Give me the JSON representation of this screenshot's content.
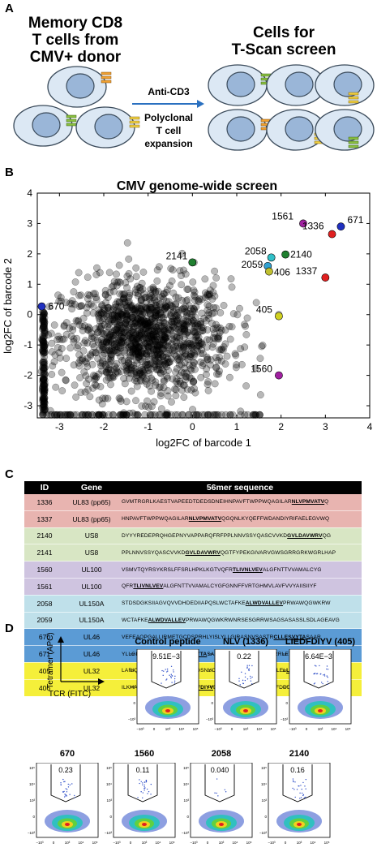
{
  "panel_a": {
    "letter": "A",
    "left_title": [
      "Memory CD8",
      "T cells from",
      "CMV+ donor"
    ],
    "right_title": [
      "Cells for",
      "T-Scan screen"
    ],
    "arrow_top": "Anti-CD3",
    "arrow_bottom": [
      "Polyclonal",
      "T cell",
      "expansion"
    ]
  },
  "panel_b": {
    "letter": "B"
  },
  "chart_data": {
    "type": "scatter",
    "title": "CMV genome-wide screen",
    "xlabel": "log2FC of barcode 1",
    "ylabel": "log2FC of barcode 2",
    "xlim": [
      -3.5,
      4
    ],
    "ylim": [
      -3.4,
      4
    ],
    "xticks": [
      "-3",
      "-2",
      "-1",
      "0",
      "1",
      "2",
      "3",
      "4"
    ],
    "yticks": [
      "4",
      "3",
      "2",
      "1",
      "0",
      "-1",
      "-2",
      "-3"
    ],
    "background_color": "#000000",
    "highlighted": [
      {
        "label": "1561",
        "x": 2.5,
        "y": 3.0,
        "color": "#a020a0"
      },
      {
        "label": "1336",
        "x": 3.15,
        "y": 2.65,
        "color": "#e02020"
      },
      {
        "label": "671",
        "x": 3.35,
        "y": 2.9,
        "color": "#2030c0"
      },
      {
        "label": "2058",
        "x": 1.78,
        "y": 1.88,
        "color": "#30c0c8"
      },
      {
        "label": "2140",
        "x": 2.1,
        "y": 1.98,
        "color": "#208030"
      },
      {
        "label": "2059",
        "x": 1.7,
        "y": 1.6,
        "color": "#30a0d0"
      },
      {
        "label": "406",
        "x": 1.73,
        "y": 1.42,
        "color": "#c0c030"
      },
      {
        "label": "1337",
        "x": 3.0,
        "y": 1.22,
        "color": "#e02020"
      },
      {
        "label": "2141",
        "x": 0.0,
        "y": 1.72,
        "color": "#208030"
      },
      {
        "label": "670",
        "x": -3.4,
        "y": 0.27,
        "color": "#2030c0"
      },
      {
        "label": "405",
        "x": 1.95,
        "y": -0.05,
        "color": "#d0d020"
      },
      {
        "label": "1560",
        "x": 1.95,
        "y": -2.0,
        "color": "#a020a0"
      }
    ]
  },
  "panel_c": {
    "letter": "C",
    "headers": {
      "id": "ID",
      "gene": "Gene",
      "seq": "56mer sequence"
    },
    "rows": [
      {
        "id": "1336",
        "gene": "UL83 (pp65)",
        "bg": "#e8b4b0",
        "pre": "GVMTRGRLKAESTVAPEEDTDEDSDNEIHNPAVFTWPPWQAGILAR",
        "epi": "NLVPMVATV",
        "post": "Q"
      },
      {
        "id": "1337",
        "gene": "UL83 (pp65)",
        "bg": "#e8b4b0",
        "pre": "HNPAVFTWPPWQAGILAR",
        "epi": "NLVPMVATV",
        "post": "QGQNLKYQEFFWDANDIYRIFAELEGVWQ"
      },
      {
        "id": "2140",
        "gene": "US8",
        "bg": "#d8e6c4",
        "pre": "DYYYREDEPRQHGEPNYVAPPARQFRFPPLNNVSSYQASCVVKD",
        "epi": "GVLDAVWRV",
        "post": "QG"
      },
      {
        "id": "2141",
        "gene": "US8",
        "bg": "#d8e6c4",
        "pre": "PPLNNVSSYQASCVVKD",
        "epi": "GVLDAVWRV",
        "post": "QGTFYPEKGIVARVGWSGRRGRKWGRLHAP"
      },
      {
        "id": "1560",
        "gene": "UL100",
        "bg": "#cfc4e0",
        "pre": "VSMVTQYRSYKRSLFFSRLHPKLKGTVQFR",
        "epi": "TLIVNLVEV",
        "post": "ALGFNTTVVAMALCYG"
      },
      {
        "id": "1561",
        "gene": "UL100",
        "bg": "#cfc4e0",
        "pre": "QFR",
        "epi": "TLIVNLVEV",
        "post": "ALGFNTTVVAMALCYGFGNNFFVRTGHMVLAVFVVYAIISIIYF"
      },
      {
        "id": "2058",
        "gene": "UL150A",
        "bg": "#bfe0ea",
        "pre": "STDSDGKSIIAGVQVVDHDEDIIAPQSLWCTAFKE",
        "epi": "ALWDVALLEV",
        "post": "PRWAWQGWKRW"
      },
      {
        "id": "2059",
        "gene": "UL150A",
        "bg": "#bfe0ea",
        "pre": "WCTAFKE",
        "epi": "ALWDVALLEV",
        "post": "PRWAWQGWKRWNRSESGRRWSAGSASASSLSDLAGEAVG"
      },
      {
        "id": "670",
        "gene": "UL46",
        "bg": "#5b9bd5",
        "pre": "VEFEAQPGALLIRMETGCDSPRHLYISLYLLGIRASNVSASTR",
        "epi": "CLLESVYTA",
        "post": "SAAR"
      },
      {
        "id": "671",
        "gene": "UL46",
        "bg": "#5b9bd5",
        "pre": "YLLGIRASNVSASTR",
        "epi": "CLLESVYTA",
        "post": "SAARAALQWLDLGPHLLHRRLETLGCVKTVSL"
      },
      {
        "id": "405",
        "gene": "UL32",
        "bg": "#f5ef3a",
        "pre": "LARIQERCKLLKVELRMCLSFDSNYCRNILKHAVENGDSADTLLEL",
        "epi": "LIEDFDIYV",
        "post": "D"
      },
      {
        "id": "406",
        "gene": "UL32",
        "bg": "#f5ef3a",
        "pre": "ILKHAVENGDSADTLLEL",
        "epi": "LIEDFDIYV",
        "post": "DPSHAHTFLGARSPSLEFDDDANLLSL"
      }
    ]
  },
  "panel_d": {
    "letter": "D",
    "y_axis_label": "Tetramer (APC)",
    "x_axis_label": "TCR (FITC)",
    "plots": [
      {
        "title": "Control peptide",
        "value": "9.51E−3"
      },
      {
        "title": "NLV (1336)",
        "value": "0.22"
      },
      {
        "title": "LIEDFDIYV (405)",
        "value": "6.64E−3"
      },
      {
        "title": "670",
        "value": "0.23"
      },
      {
        "title": "1560",
        "value": "0.11"
      },
      {
        "title": "2058",
        "value": "0.040"
      },
      {
        "title": "2140",
        "value": "0.16"
      }
    ],
    "tick_labels": {
      "y": [
        "10⁵",
        "10⁴",
        "10³",
        "0",
        "−10³"
      ],
      "x": [
        "−10³",
        "0",
        "10³",
        "10⁴",
        "10⁵"
      ]
    }
  }
}
